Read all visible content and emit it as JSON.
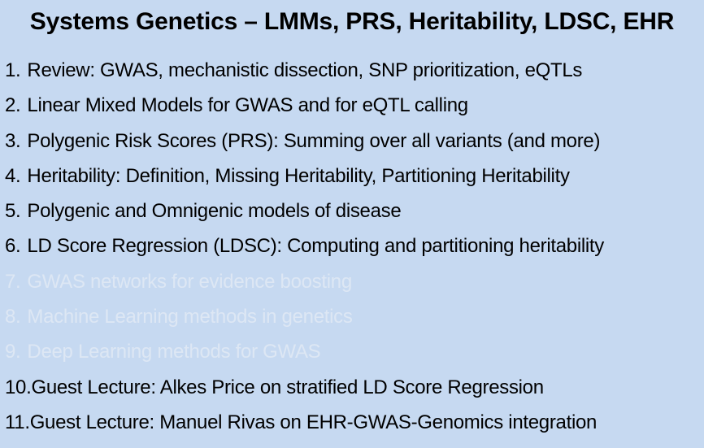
{
  "slide": {
    "title": "Systems Genetics – LMMs, PRS, Heritability, LDSC, EHR",
    "items": [
      {
        "number": "1.",
        "text": "Review: GWAS, mechanistic dissection, SNP prioritization, eQTLs",
        "dimmed": false
      },
      {
        "number": "2.",
        "text": "Linear Mixed Models for GWAS and for eQTL calling",
        "dimmed": false
      },
      {
        "number": "3.",
        "text": "Polygenic Risk Scores (PRS): Summing over all variants (and more)",
        "dimmed": false
      },
      {
        "number": "4.",
        "text": "Heritability: Definition, Missing Heritability, Partitioning Heritability",
        "dimmed": false
      },
      {
        "number": "5.",
        "text": "Polygenic and Omnigenic models of disease",
        "dimmed": false
      },
      {
        "number": "6.",
        "text": "LD Score Regression (LDSC): Computing and partitioning heritability",
        "dimmed": false
      },
      {
        "number": "7.",
        "text": "GWAS networks for evidence boosting",
        "dimmed": true
      },
      {
        "number": "8.",
        "text": "Machine Learning methods in genetics",
        "dimmed": true
      },
      {
        "number": "9.",
        "text": "Deep Learning methods for GWAS",
        "dimmed": true
      },
      {
        "number": "10.",
        "text": "Guest Lecture: Alkes Price on stratified LD Score Regression",
        "dimmed": false
      },
      {
        "number": "11.",
        "text": "Guest Lecture: Manuel Rivas on EHR-GWAS-Genomics integration",
        "dimmed": false
      }
    ]
  },
  "colors": {
    "background": "#c6d9f1",
    "text": "#000000",
    "dimmed_text": "#dde7f4"
  }
}
